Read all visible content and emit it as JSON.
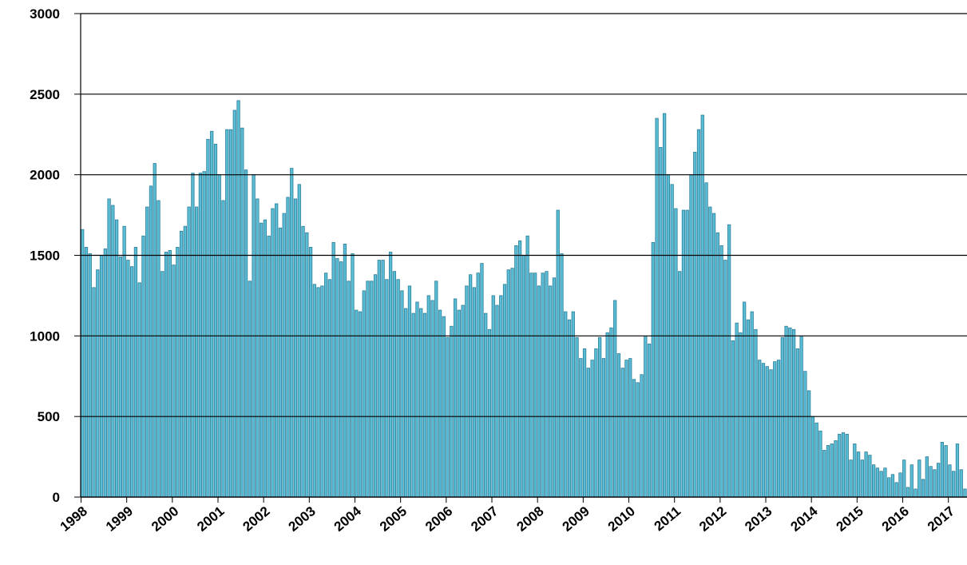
{
  "chart_data": {
    "type": "bar",
    "color": "#5bbcd6",
    "edge_color": "#2b7f98",
    "categories": [
      "1998",
      null,
      null,
      null,
      null,
      null,
      null,
      null,
      null,
      null,
      null,
      null,
      "1999",
      null,
      null,
      null,
      null,
      null,
      null,
      null,
      null,
      null,
      null,
      null,
      "2000",
      null,
      null,
      null,
      null,
      null,
      null,
      null,
      null,
      null,
      null,
      null,
      "2001",
      null,
      null,
      null,
      null,
      null,
      null,
      null,
      null,
      null,
      null,
      null,
      "2002",
      null,
      null,
      null,
      null,
      null,
      null,
      null,
      null,
      null,
      null,
      null,
      "2003",
      null,
      null,
      null,
      null,
      null,
      null,
      null,
      null,
      null,
      null,
      null,
      "2004",
      null,
      null,
      null,
      null,
      null,
      null,
      null,
      null,
      null,
      null,
      null,
      "2005",
      null,
      null,
      null,
      null,
      null,
      null,
      null,
      null,
      null,
      null,
      null,
      "2006",
      null,
      null,
      null,
      null,
      null,
      null,
      null,
      null,
      null,
      null,
      null,
      "2007",
      null,
      null,
      null,
      null,
      null,
      null,
      null,
      null,
      null,
      null,
      null,
      "2008",
      null,
      null,
      null,
      null,
      null,
      null,
      null,
      null,
      null,
      null,
      null,
      "2009",
      null,
      null,
      null,
      null,
      null,
      null,
      null,
      null,
      null,
      null,
      null,
      "2010",
      null,
      null,
      null,
      null,
      null,
      null,
      null,
      null,
      null,
      null,
      null,
      "2011",
      null,
      null,
      null,
      null,
      null,
      null,
      null,
      null,
      null,
      null,
      null,
      "2012",
      null,
      null,
      null,
      null,
      null,
      null,
      null,
      null,
      null,
      null,
      null,
      "2013",
      null,
      null,
      null,
      null,
      null,
      null,
      null,
      null,
      null,
      null,
      null,
      "2014",
      null,
      null,
      null,
      null,
      null,
      null,
      null,
      null,
      null,
      null,
      null,
      "2015",
      null,
      null,
      null,
      null,
      null,
      null,
      null,
      null,
      null,
      null,
      null,
      "2016",
      null,
      null,
      null,
      null,
      null,
      null,
      null,
      null,
      null,
      null,
      null,
      "2017",
      null,
      null,
      null,
      null
    ],
    "values": [
      1660,
      1550,
      1510,
      1300,
      1410,
      1500,
      1540,
      1850,
      1810,
      1720,
      1490,
      1680,
      1470,
      1430,
      1550,
      1330,
      1620,
      1800,
      1930,
      2070,
      1840,
      1400,
      1520,
      1530,
      1440,
      1550,
      1650,
      1680,
      1800,
      2010,
      1800,
      2010,
      2020,
      2220,
      2270,
      2190,
      2000,
      1840,
      2280,
      2280,
      2400,
      2460,
      2290,
      2030,
      1340,
      2000,
      1850,
      1700,
      1720,
      1620,
      1790,
      1820,
      1670,
      1760,
      1860,
      2040,
      1850,
      1940,
      1680,
      1640,
      1550,
      1320,
      1300,
      1310,
      1390,
      1350,
      1580,
      1480,
      1460,
      1570,
      1340,
      1510,
      1160,
      1150,
      1280,
      1340,
      1340,
      1380,
      1470,
      1470,
      1350,
      1520,
      1400,
      1350,
      1280,
      1170,
      1310,
      1140,
      1210,
      1170,
      1140,
      1250,
      1220,
      1340,
      1160,
      1120,
      990,
      1060,
      1230,
      1160,
      1190,
      1310,
      1380,
      1300,
      1390,
      1450,
      1140,
      1040,
      1250,
      1190,
      1250,
      1320,
      1410,
      1420,
      1560,
      1590,
      1500,
      1620,
      1390,
      1390,
      1310,
      1390,
      1400,
      1310,
      1360,
      1780,
      1510,
      1150,
      1100,
      1150,
      990,
      860,
      920,
      800,
      850,
      920,
      990,
      860,
      1020,
      1050,
      1220,
      890,
      800,
      850,
      860,
      730,
      710,
      760,
      1000,
      950,
      1580,
      2350,
      2170,
      2380,
      2000,
      1940,
      1790,
      1400,
      1780,
      1780,
      2000,
      2140,
      2280,
      2370,
      1950,
      1800,
      1760,
      1640,
      1560,
      1470,
      1690,
      970,
      1080,
      1020,
      1210,
      1100,
      1150,
      1040,
      850,
      830,
      810,
      790,
      840,
      850,
      990,
      1060,
      1050,
      1040,
      920,
      1000,
      780,
      660,
      500,
      460,
      410,
      290,
      320,
      330,
      350,
      390,
      400,
      390,
      230,
      330,
      280,
      230,
      280,
      260,
      200,
      180,
      160,
      180,
      120,
      140,
      90,
      150,
      230,
      60,
      200,
      50,
      230,
      110,
      250,
      190,
      170,
      210,
      340,
      320,
      200,
      160,
      330,
      170,
      50
    ],
    "ylim": [
      0,
      3000
    ],
    "yticks": [
      0,
      500,
      1000,
      1500,
      2000,
      2500,
      3000
    ],
    "grid": true
  }
}
